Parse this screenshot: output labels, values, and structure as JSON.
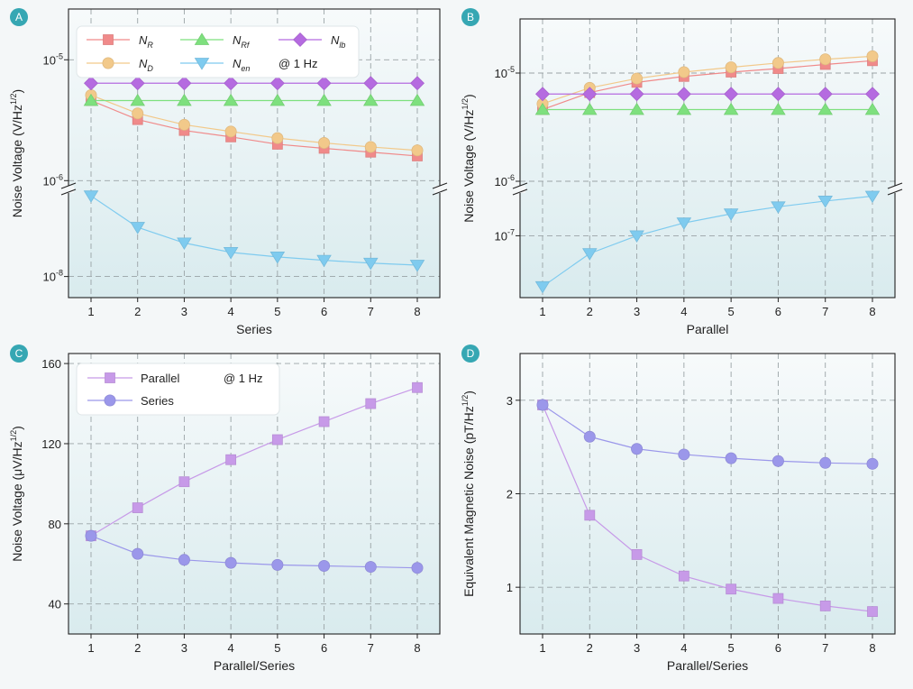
{
  "colors": {
    "NR": "#f08a8a",
    "ND": "#f2c98a",
    "NRf": "#7ee07e",
    "Nen": "#7fcbef",
    "Nlb": "#b56be0",
    "parallel": "#c79ae8",
    "series": "#9b97ea",
    "badge": "#36a7b3",
    "plot_top": "#f7fafb",
    "plot_bottom": "#d9ebee"
  },
  "chart_data": [
    {
      "badge": "A",
      "type": "line",
      "xlabel": "Series",
      "ylabel": "Noise Voltage (V/Hz",
      "ylabel_sup": "1/2",
      "ylabel_end": ")",
      "yscale": "log (broken axis)",
      "x": [
        1,
        2,
        3,
        4,
        5,
        6,
        7,
        8
      ],
      "y_ticks_upper": [
        {
          "base": "10",
          "exp": "-5"
        },
        {
          "base": "10",
          "exp": "-6"
        }
      ],
      "y_ticks_lower": [
        {
          "base": "10",
          "exp": "-8"
        }
      ],
      "legend": {
        "note": "@ 1 Hz",
        "position": "top-left"
      },
      "series": [
        {
          "key": "NR",
          "name": "N",
          "sub": "R",
          "marker": "square",
          "values": [
            4.6e-06,
            3.2e-06,
            2.6e-06,
            2.3e-06,
            2e-06,
            1.85e-06,
            1.72e-06,
            1.6e-06
          ]
        },
        {
          "key": "ND",
          "name": "N",
          "sub": "D",
          "marker": "circle",
          "values": [
            5.1e-06,
            3.6e-06,
            2.9e-06,
            2.55e-06,
            2.25e-06,
            2.05e-06,
            1.9e-06,
            1.78e-06
          ]
        },
        {
          "key": "NRf",
          "name": "N",
          "sub": "Rf",
          "marker": "triangle-up",
          "values": [
            4.6e-06,
            4.6e-06,
            4.6e-06,
            4.6e-06,
            4.6e-06,
            4.6e-06,
            4.6e-06,
            4.6e-06
          ]
        },
        {
          "key": "Nen",
          "name": "N",
          "sub": "en",
          "marker": "triangle-down",
          "values": [
            1.4e-07,
            5e-08,
            3e-08,
            2.2e-08,
            1.9e-08,
            1.7e-08,
            1.55e-08,
            1.45e-08
          ]
        },
        {
          "key": "Nlb",
          "name": "N",
          "sub": "lb",
          "marker": "diamond",
          "values": [
            6.4e-06,
            6.4e-06,
            6.4e-06,
            6.4e-06,
            6.4e-06,
            6.4e-06,
            6.4e-06,
            6.4e-06
          ]
        }
      ]
    },
    {
      "badge": "B",
      "type": "line",
      "xlabel": "Parallel",
      "ylabel": "Noise Voltage (V/Hz",
      "ylabel_sup": "1/2",
      "ylabel_end": ")",
      "yscale": "log (broken axis)",
      "x": [
        1,
        2,
        3,
        4,
        5,
        6,
        7,
        8
      ],
      "y_ticks_upper": [
        {
          "base": "10",
          "exp": "-5"
        },
        {
          "base": "10",
          "exp": "-6"
        }
      ],
      "y_ticks_lower": [
        {
          "base": "10",
          "exp": "-7"
        }
      ],
      "series": [
        {
          "key": "NR",
          "marker": "square",
          "values": [
            4.6e-06,
            6.6e-06,
            8.2e-06,
            9.3e-06,
            1.02e-05,
            1.1e-05,
            1.2e-05,
            1.3e-05
          ]
        },
        {
          "key": "ND",
          "marker": "circle",
          "values": [
            5.2e-06,
            7.3e-06,
            8.9e-06,
            1.02e-05,
            1.13e-05,
            1.24e-05,
            1.34e-05,
            1.43e-05
          ]
        },
        {
          "key": "NRf",
          "marker": "triangle-up",
          "values": [
            4.6e-06,
            4.6e-06,
            4.6e-06,
            4.6e-06,
            4.6e-06,
            4.6e-06,
            4.6e-06,
            4.6e-06
          ]
        },
        {
          "key": "Nen",
          "marker": "triangle-down",
          "values": [
            2e-08,
            5.7e-08,
            1e-07,
            1.5e-07,
            2e-07,
            2.5e-07,
            3e-07,
            3.5e-07
          ]
        },
        {
          "key": "Nlb",
          "marker": "diamond",
          "values": [
            6.4e-06,
            6.4e-06,
            6.4e-06,
            6.4e-06,
            6.4e-06,
            6.4e-06,
            6.4e-06,
            6.4e-06
          ]
        }
      ]
    },
    {
      "badge": "C",
      "type": "line",
      "xlabel": "Parallel/Series",
      "ylabel": "Noise Voltage (μV/Hz",
      "ylabel_sup": "1/2",
      "ylabel_end": ")",
      "x": [
        1,
        2,
        3,
        4,
        5,
        6,
        7,
        8
      ],
      "ylim": [
        25,
        165
      ],
      "yticks": [
        40,
        80,
        120,
        160
      ],
      "legend": {
        "note": "@ 1 Hz",
        "position": "top-left"
      },
      "series": [
        {
          "key": "parallel",
          "name": "Parallel",
          "marker": "square",
          "values": [
            74,
            88,
            101,
            112,
            122,
            131,
            140,
            148
          ]
        },
        {
          "key": "series",
          "name": "Series",
          "marker": "circle",
          "values": [
            74,
            65,
            62,
            60.5,
            59.5,
            59,
            58.5,
            58
          ]
        }
      ]
    },
    {
      "badge": "D",
      "type": "line",
      "xlabel": "Parallel/Series",
      "ylabel": "Equivalent Magnetic Noise (pT/Hz",
      "ylabel_sup": "1/2",
      "ylabel_end": ")",
      "x": [
        1,
        2,
        3,
        4,
        5,
        6,
        7,
        8
      ],
      "ylim": [
        0.5,
        3.5
      ],
      "yticks": [
        1,
        2,
        3
      ],
      "series": [
        {
          "key": "parallel",
          "marker": "square",
          "values": [
            2.95,
            1.77,
            1.35,
            1.12,
            0.98,
            0.88,
            0.8,
            0.74
          ]
        },
        {
          "key": "series",
          "marker": "circle",
          "values": [
            2.95,
            2.61,
            2.48,
            2.42,
            2.38,
            2.35,
            2.33,
            2.32
          ]
        }
      ]
    }
  ]
}
